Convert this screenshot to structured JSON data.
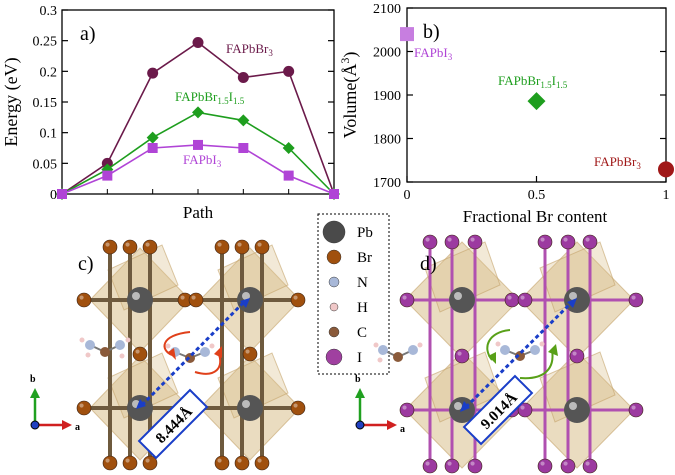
{
  "panel_a": {
    "letter": "a)",
    "ylabel": "Energy (eV)",
    "xlabel": "Path",
    "yticks": [
      "0",
      "0.05",
      "0.1",
      "0.15",
      "0.2",
      "0.25",
      "0.3"
    ],
    "labels": {
      "br": [
        "FAPbBr",
        "3",
        ""
      ],
      "mix": [
        "FAPbBr",
        "1.5",
        "I",
        "1.5"
      ],
      "i": [
        "FAPbI",
        "3",
        ""
      ]
    }
  },
  "panel_b": {
    "letter": "b)",
    "ylabel": "Volume(Å",
    "ylabel_sup": "3",
    "ylabel_end": ")",
    "xlabel": "Fractional Br content",
    "yticks": [
      "1700",
      "1800",
      "1900",
      "2000",
      "2100"
    ],
    "xticks": [
      "0",
      "0.5",
      "1"
    ],
    "labels": {
      "i": [
        "FAPbI",
        "3"
      ],
      "mix": [
        "FAPbBr",
        "1.5",
        "I",
        "1.5"
      ],
      "br": [
        "FAPbBr",
        "3"
      ]
    }
  },
  "chart_data": [
    {
      "type": "line",
      "x": [
        0,
        1,
        2,
        3,
        4,
        5,
        6
      ],
      "xlabel": "Path",
      "ylabel": "Energy (eV)",
      "ylim": [
        0,
        0.3
      ],
      "series": [
        {
          "name": "FAPbBr3",
          "color": "#6b1a4a",
          "marker": "circle",
          "values": [
            0,
            0.05,
            0.197,
            0.247,
            0.19,
            0.2,
            0
          ]
        },
        {
          "name": "FAPbBr1.5I1.5",
          "color": "#1e9e1e",
          "marker": "diamond",
          "values": [
            0,
            0.04,
            0.092,
            0.133,
            0.12,
            0.075,
            0
          ]
        },
        {
          "name": "FAPbI3",
          "color": "#b044d6",
          "marker": "square",
          "values": [
            0,
            0.03,
            0.075,
            0.08,
            0.075,
            0.03,
            0
          ]
        }
      ]
    },
    {
      "type": "scatter",
      "xlabel": "Fractional Br content",
      "ylabel": "Volume(Å3)",
      "xlim": [
        0,
        1
      ],
      "ylim": [
        1700,
        2100
      ],
      "points": [
        {
          "name": "FAPbI3",
          "x": 0,
          "y": 2040,
          "color": "#c77ee0",
          "marker": "square"
        },
        {
          "name": "FAPbBr1.5I1.5",
          "x": 0.5,
          "y": 1886,
          "color": "#1e9e1e",
          "marker": "diamond"
        },
        {
          "name": "FAPbBr3",
          "x": 1,
          "y": 1729,
          "color": "#a01818",
          "marker": "circle"
        }
      ]
    }
  ],
  "legend": {
    "items": [
      {
        "symbol": "Pb",
        "color": "#4a4a4a"
      },
      {
        "symbol": "Br",
        "color": "#a0500e"
      },
      {
        "symbol": "N",
        "color": "#a8b8d8"
      },
      {
        "symbol": "H",
        "color": "#f0c8c8"
      },
      {
        "symbol": "C",
        "color": "#8a5a3a"
      },
      {
        "symbol": "I",
        "color": "#a040a0"
      }
    ]
  },
  "panel_c": {
    "letter": "c)",
    "distance": "8.444Å",
    "halide_color": "#a0500e"
  },
  "panel_d": {
    "letter": "d)",
    "distance": "9.014Å",
    "halide_color": "#9c3aa0"
  },
  "axes_triad": {
    "b": "b",
    "a": "a"
  }
}
